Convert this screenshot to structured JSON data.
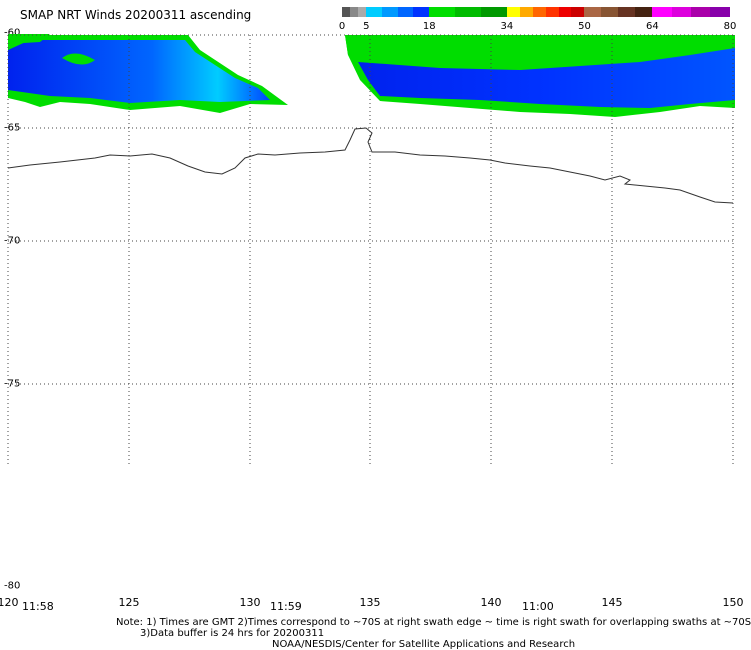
{
  "title": "SMAP NRT Winds 20200311 ascending",
  "colorbar": {
    "tick_labels": [
      "0",
      "5",
      "18",
      "34",
      "50",
      "64",
      "80"
    ],
    "segments": [
      {
        "from": 0,
        "to": 5,
        "colors": [
          "#555555",
          "#888888",
          "#aaaaaa"
        ]
      },
      {
        "from": 5,
        "to": 18,
        "colors": [
          "#00ccff",
          "#0099ff",
          "#0066ff",
          "#0033ff"
        ]
      },
      {
        "from": 18,
        "to": 34,
        "colors": [
          "#00dd00",
          "#00bb00",
          "#009900"
        ]
      },
      {
        "from": 34,
        "to": 50,
        "colors": [
          "#ffff00",
          "#ffaa00",
          "#ff6600",
          "#ff3300",
          "#ee0000",
          "#cc0000"
        ]
      },
      {
        "from": 50,
        "to": 64,
        "colors": [
          "#aa6644",
          "#885533",
          "#663322",
          "#442211"
        ]
      },
      {
        "from": 64,
        "to": 80,
        "colors": [
          "#ff00ff",
          "#dd00dd",
          "#aa00aa",
          "#8800aa"
        ]
      }
    ]
  },
  "map": {
    "lat_range": [
      -80,
      -60
    ],
    "lon_range": [
      120,
      150
    ],
    "lat_labels": [
      "-60",
      "-65",
      "-70",
      "-75",
      "-80"
    ],
    "lon_labels": [
      "120",
      "125",
      "130",
      "135",
      "140",
      "145",
      "150"
    ],
    "lat_values": [
      -60,
      -65,
      -70,
      -75,
      -80
    ],
    "lon_values": [
      120,
      125,
      130,
      135,
      140,
      145,
      150
    ]
  },
  "times": [
    "11:58",
    "11:59",
    "11:00"
  ],
  "notes": [
    "Note: 1) Times are GMT 2)Times correspond to ~70S at right swath edge ~ time is right swath for overlapping swaths at ~70S",
    "3)Data buffer is 24 hrs for 20200311",
    "NOAA/NESDIS/Center for Satellite Applications and Research"
  ],
  "colors": {
    "swath_green": "#00dd00",
    "swath_blue_dark": "#0022ee",
    "swath_blue_light": "#00ccff",
    "coastline": "#333333",
    "grid": "#444444"
  }
}
